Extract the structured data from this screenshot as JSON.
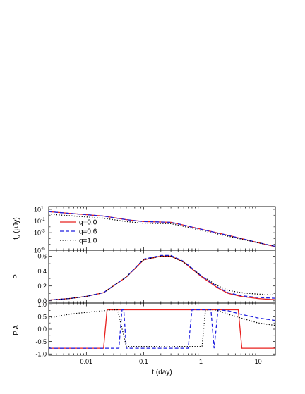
{
  "chart_data": {
    "type": "line",
    "x_axis": {
      "label": "t (day)",
      "scale": "log",
      "range": [
        0.0022,
        20
      ],
      "ticks": [
        0.01,
        0.1,
        1,
        10
      ],
      "tick_labels": [
        "0.01",
        "0.1",
        "1",
        "10"
      ]
    },
    "series_styles": [
      {
        "name": "q=0.0",
        "color": "#e8201e",
        "dash": "solid"
      },
      {
        "name": "q=0.6",
        "color": "#1f1fe0",
        "dash": "dashed"
      },
      {
        "name": "q=1.0",
        "color": "#000000",
        "dash": "dotted"
      }
    ],
    "legend": {
      "placement": "top-left",
      "panel": 0
    },
    "panels": [
      {
        "ylabel": "f_ν (μJy)",
        "ylabel_main": "f",
        "ylabel_sub": "ν",
        "ylabel_rest": "(μJy)",
        "y_scale": "log",
        "y_range": [
          1e-06,
          30
        ],
        "ticks": [
          10,
          0.1,
          0.001,
          1e-06
        ],
        "tick_base": [
          "10",
          "10",
          "10",
          "10"
        ],
        "tick_exp": [
          "1",
          "-1",
          "-3",
          "-6"
        ],
        "series": [
          {
            "name": "q=0.0",
            "x": [
              0.0022,
              0.02,
              0.05,
              0.1,
              0.3,
              0.5,
              1,
              3,
              10,
              20
            ],
            "y": [
              4,
              0.7,
              0.17,
              0.08,
              0.06,
              0.02,
              0.004,
              0.00035,
              2e-05,
              4e-06
            ]
          },
          {
            "name": "q=0.6",
            "x": [
              0.0022,
              0.02,
              0.05,
              0.1,
              0.3,
              0.5,
              1,
              3,
              10,
              20
            ],
            "y": [
              4,
              0.7,
              0.17,
              0.08,
              0.06,
              0.02,
              0.004,
              0.00035,
              2e-05,
              4.5e-06
            ]
          },
          {
            "name": "q=1.0",
            "x": [
              0.0022,
              0.02,
              0.05,
              0.1,
              0.3,
              0.5,
              1,
              3,
              10,
              20
            ],
            "y": [
              1.5,
              0.3,
              0.08,
              0.04,
              0.035,
              0.012,
              0.0025,
              0.00025,
              1.8e-05,
              5e-06
            ]
          }
        ]
      },
      {
        "ylabel": "P",
        "y_scale": "linear",
        "y_range": [
          -0.03,
          0.68
        ],
        "ticks": [
          0.0,
          0.2,
          0.4,
          0.6
        ],
        "tick_labels": [
          "0.0",
          "0.2",
          "0.4",
          "0.6"
        ],
        "series": [
          {
            "name": "q=0.0",
            "x": [
              0.0022,
              0.005,
              0.01,
              0.02,
              0.05,
              0.1,
              0.2,
              0.3,
              0.5,
              1,
              2,
              3,
              5,
              10,
              20
            ],
            "y": [
              0.01,
              0.03,
              0.06,
              0.11,
              0.32,
              0.55,
              0.6,
              0.6,
              0.52,
              0.33,
              0.17,
              0.1,
              0.06,
              0.03,
              0.015
            ]
          },
          {
            "name": "q=0.6",
            "x": [
              0.0022,
              0.005,
              0.01,
              0.02,
              0.05,
              0.1,
              0.2,
              0.3,
              0.5,
              1,
              2,
              3,
              5,
              10,
              20
            ],
            "y": [
              0.01,
              0.03,
              0.06,
              0.11,
              0.32,
              0.56,
              0.61,
              0.61,
              0.53,
              0.34,
              0.18,
              0.11,
              0.07,
              0.045,
              0.035
            ]
          },
          {
            "name": "q=1.0",
            "x": [
              0.0022,
              0.005,
              0.01,
              0.02,
              0.05,
              0.1,
              0.2,
              0.3,
              0.5,
              1,
              2,
              3,
              5,
              10,
              20
            ],
            "y": [
              0.01,
              0.03,
              0.06,
              0.11,
              0.32,
              0.55,
              0.6,
              0.6,
              0.52,
              0.34,
              0.2,
              0.14,
              0.11,
              0.09,
              0.08
            ]
          }
        ]
      },
      {
        "ylabel": "P.A.",
        "y_scale": "linear",
        "y_range": [
          -1.05,
          1.05
        ],
        "ticks": [
          -1.0,
          -0.5,
          0.0,
          0.5,
          1.0
        ],
        "tick_labels": [
          "-1.0",
          "-0.5",
          "0.0",
          "0.5",
          "1.0"
        ],
        "series": [
          {
            "name": "q=0.0",
            "x": [
              0.0022,
              0.02,
              0.023,
              4.5,
              5.2,
              20
            ],
            "y": [
              -0.77,
              -0.77,
              0.78,
              0.78,
              -0.77,
              -0.77
            ]
          },
          {
            "name": "q=0.6",
            "x": [
              0.0022,
              0.037,
              0.042,
              0.045,
              0.05,
              0.6,
              0.7,
              0.9,
              1.5,
              1.7,
              2,
              3,
              5,
              10,
              20
            ],
            "y": [
              -0.77,
              -0.77,
              0.78,
              0.78,
              -0.77,
              -0.77,
              0.78,
              0.78,
              0.78,
              -0.77,
              0.78,
              0.74,
              0.6,
              0.45,
              0.35
            ]
          },
          {
            "name": "q=1.0",
            "x": [
              0.0022,
              0.005,
              0.01,
              0.02,
              0.025,
              0.035,
              0.05,
              0.3,
              0.8,
              1.05,
              1.2,
              1.5,
              2,
              3,
              5,
              10,
              20
            ],
            "y": [
              0.45,
              0.6,
              0.68,
              0.74,
              0.77,
              0.78,
              -0.7,
              -0.7,
              -0.7,
              -0.7,
              0.75,
              0.78,
              0.75,
              0.6,
              0.45,
              0.25,
              0.15
            ]
          }
        ]
      }
    ]
  }
}
